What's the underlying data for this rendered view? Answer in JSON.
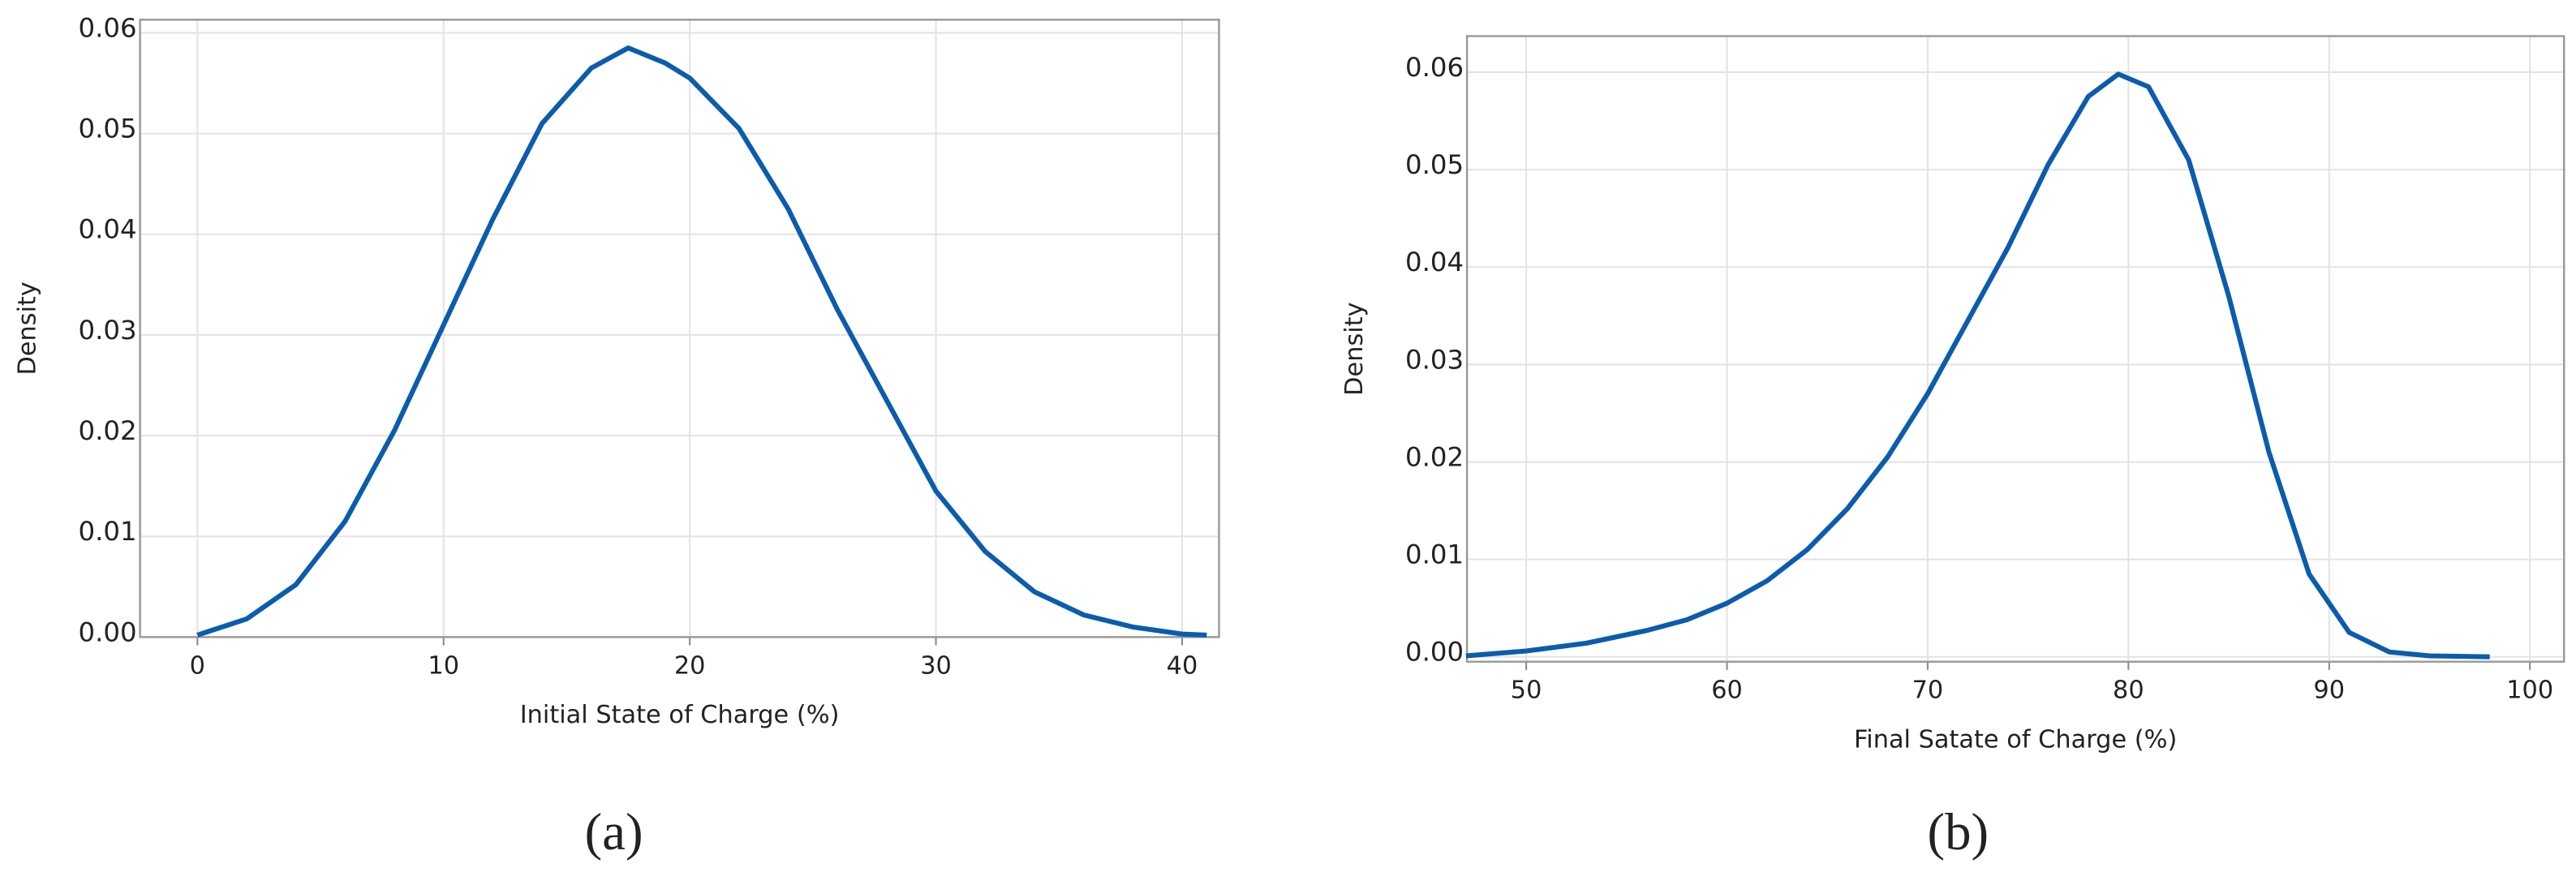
{
  "chart_data": [
    {
      "type": "line",
      "caption": "(a)",
      "x_label": "Initial State of Charge (%)",
      "y_label": "Density",
      "x": [
        0,
        2,
        4,
        6,
        8,
        10,
        12,
        14,
        16,
        17.5,
        19,
        20,
        22,
        24,
        26,
        28,
        30,
        32,
        34,
        36,
        38,
        40,
        41
      ],
      "values": [
        0.0002,
        0.0018,
        0.0052,
        0.0115,
        0.0205,
        0.031,
        0.0415,
        0.051,
        0.0565,
        0.0585,
        0.057,
        0.0555,
        0.0505,
        0.0425,
        0.0325,
        0.0235,
        0.0145,
        0.0085,
        0.0045,
        0.0022,
        0.001,
        0.0003,
        0.0002
      ],
      "color": "#0b5cad",
      "grid": true,
      "xlim": [
        -2.33,
        41.5
      ],
      "xticks": [
        0,
        10,
        20,
        30,
        40
      ],
      "ylim": [
        0,
        0.0613
      ],
      "yticks": [
        {
          "value": 0,
          "label": "0.00"
        },
        0.01,
        0.02,
        0.03,
        0.04,
        0.05,
        0.06
      ]
    },
    {
      "type": "line",
      "caption": "(b)",
      "x_label": "Final Satate of Charge (%)",
      "y_label": "Density",
      "x": [
        47,
        50,
        53,
        56,
        58,
        60,
        62,
        64,
        66,
        68,
        70,
        72,
        74,
        76,
        78,
        79.5,
        81,
        83,
        85,
        87,
        89,
        91,
        93,
        95,
        98
      ],
      "values": [
        0.0001,
        0.0006,
        0.0014,
        0.0027,
        0.0038,
        0.0055,
        0.0078,
        0.011,
        0.0152,
        0.0205,
        0.027,
        0.0345,
        0.042,
        0.0505,
        0.0575,
        0.0598,
        0.0585,
        0.051,
        0.037,
        0.021,
        0.0085,
        0.0025,
        0.0005,
        0.0001,
        0
      ],
      "color": "#0b5cad",
      "grid": true,
      "xlim": [
        47.05,
        101.7
      ],
      "xticks": [
        50,
        60,
        70,
        80,
        90,
        100
      ],
      "ylim": [
        -0.0005,
        0.0637
      ],
      "yticks": [
        {
          "value": 0,
          "label": "0.00"
        },
        0.01,
        0.02,
        0.03,
        0.04,
        0.05,
        0.06
      ]
    }
  ]
}
